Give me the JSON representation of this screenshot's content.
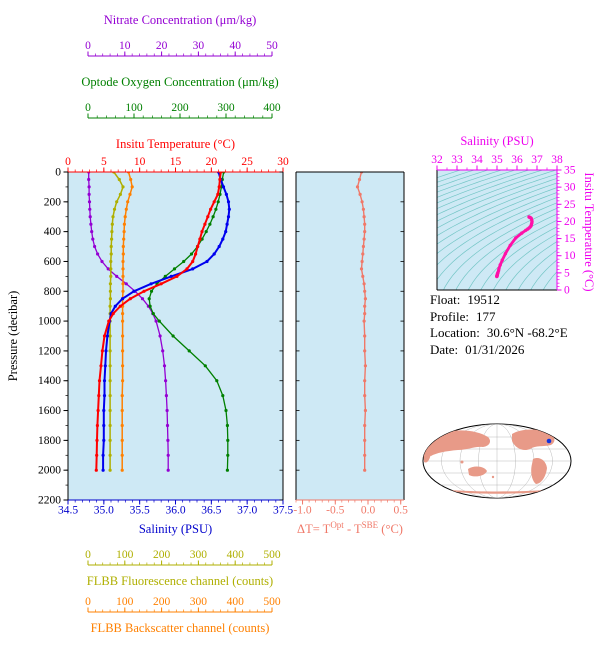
{
  "float_info": {
    "float_label": "Float:",
    "float_value": "19512",
    "profile_label": "Profile:",
    "profile_value": "177",
    "location_label": "Location:",
    "location_value": "30.6°N -68.2°E",
    "date_label": "Date:",
    "date_value": "01/31/2026"
  },
  "map": {
    "marker_color": "#1133DD",
    "land_color": "#E89A88"
  },
  "axes": {
    "nitrate": {
      "title": "Nitrate Concentration (μm/kg)",
      "color": "#9400D3",
      "min": 0,
      "max": 50,
      "ticks": [
        0,
        10,
        20,
        30,
        40,
        50
      ],
      "tick_labels": [
        "0",
        "10",
        "20",
        "30",
        "40",
        "50"
      ]
    },
    "oxygen": {
      "title": "Optode Oxygen Concentration (μm/kg)",
      "color": "#008000",
      "min": 0,
      "max": 400,
      "ticks": [
        0,
        100,
        200,
        300,
        400
      ],
      "tick_labels": [
        "0",
        "100",
        "200",
        "300",
        "400"
      ]
    },
    "temperature": {
      "title": "Insitu Temperature (°C)",
      "color": "#FF0000",
      "min": 0,
      "max": 30,
      "ticks": [
        0,
        5,
        10,
        15,
        20,
        25,
        30
      ],
      "tick_labels": [
        "0",
        "5",
        "10",
        "15",
        "20",
        "25",
        "30"
      ]
    },
    "pressure": {
      "title": "Pressure (decibar)",
      "color": "#000000",
      "min": 0,
      "max": 2200,
      "ticks": [
        0,
        200,
        400,
        600,
        800,
        1000,
        1200,
        1400,
        1600,
        1800,
        2000,
        2200
      ],
      "tick_labels": [
        "0",
        "200",
        "400",
        "600",
        "800",
        "1000",
        "1200",
        "1400",
        "1600",
        "1800",
        "2000",
        "2200"
      ]
    },
    "salinity": {
      "title": "Salinity (PSU)",
      "color": "#0000CC",
      "min": 34.5,
      "max": 37.5,
      "ticks": [
        34.5,
        35.0,
        35.5,
        36.0,
        36.5,
        37.0,
        37.5
      ],
      "tick_labels": [
        "34.5",
        "35.0",
        "35.5",
        "36.0",
        "36.5",
        "37.0",
        "37.5"
      ]
    },
    "fluorescence": {
      "title": "FLBB Fluorescence channel (counts)",
      "color": "#AFAF00",
      "min": 0,
      "max": 500,
      "ticks": [
        0,
        100,
        200,
        300,
        400,
        500
      ],
      "tick_labels": [
        "0",
        "100",
        "200",
        "300",
        "400",
        "500"
      ]
    },
    "backscatter": {
      "title": "FLBB Backscatter channel (counts)",
      "color": "#FF8000",
      "min": 0,
      "max": 500,
      "ticks": [
        0,
        100,
        200,
        300,
        400,
        500
      ],
      "tick_labels": [
        "0",
        "100",
        "200",
        "300",
        "400",
        "500"
      ]
    },
    "delta_t": {
      "title_parts": {
        "t1": "ΔT= T",
        "sup1": "Opt",
        "t2": " - T",
        "sup2": "SBE",
        "t3": " (°C)"
      },
      "color": "#F07868",
      "min": -1.0,
      "max": 0.5,
      "ticks": [
        -1.0,
        -0.5,
        0.0,
        0.5
      ],
      "tick_labels": [
        "-1.0",
        "-0.5",
        "0.0",
        "0.5"
      ]
    },
    "ts_salinity": {
      "title": "Salinity (PSU)",
      "color": "#EE00EE",
      "min": 32,
      "max": 38,
      "ticks": [
        32,
        33,
        34,
        35,
        36,
        37,
        38
      ],
      "tick_labels": [
        "32",
        "33",
        "34",
        "35",
        "36",
        "37",
        "38"
      ]
    },
    "ts_temperature": {
      "title": "Insitu Temperature (°C)",
      "color": "#EE00EE",
      "min": 0,
      "max": 35,
      "ticks": [
        0,
        5,
        10,
        15,
        20,
        25,
        30,
        35
      ],
      "tick_labels": [
        "0",
        "5",
        "10",
        "15",
        "20",
        "25",
        "30",
        "35"
      ]
    }
  },
  "chart_data": {
    "type": "line",
    "description": "Argo float vertical profiles vs pressure, optode-minus-SBE temperature difference profile, and T-S diagram with isopycnals",
    "pressure_db": [
      0,
      50,
      100,
      150,
      200,
      250,
      300,
      350,
      400,
      450,
      500,
      550,
      600,
      650,
      700,
      750,
      800,
      850,
      900,
      950,
      1000,
      1100,
      1200,
      1300,
      1400,
      1500,
      1600,
      1700,
      1800,
      1900,
      2000
    ],
    "series": [
      {
        "name": "nitrate",
        "label": "Nitrate Concentration (μm/kg)",
        "axis": "nitrate",
        "color": "#9400D3",
        "values": [
          0.2,
          0.2,
          0.3,
          0.3,
          0.4,
          0.5,
          0.6,
          0.8,
          1.0,
          1.3,
          1.8,
          2.6,
          3.8,
          5.5,
          7.8,
          10.4,
          12.8,
          14.8,
          16.4,
          17.6,
          18.5,
          19.6,
          20.3,
          20.8,
          21.1,
          21.3,
          21.5,
          21.6,
          21.7,
          21.8,
          21.8
        ]
      },
      {
        "name": "fluorescence",
        "label": "FLBB Fluorescence channel (counts)",
        "axis": "fluorescence",
        "color": "#AFAF00",
        "width": 1.5,
        "values": [
          70,
          85,
          95,
          88,
          78,
          72,
          68,
          66,
          65,
          64,
          63,
          63,
          62,
          62,
          62,
          61,
          61,
          61,
          60,
          60,
          60,
          60,
          60,
          60,
          60,
          60,
          60,
          60,
          60,
          60,
          60
        ]
      },
      {
        "name": "backscatter",
        "label": "FLBB Backscatter channel (counts)",
        "axis": "backscatter",
        "color": "#FF8000",
        "width": 1.5,
        "values": [
          110,
          116,
          120,
          114,
          108,
          104,
          101,
          99,
          98,
          97,
          96,
          96,
          95,
          95,
          95,
          95,
          95,
          94,
          94,
          94,
          94,
          94,
          94,
          94,
          94,
          93,
          93,
          93,
          93,
          93,
          93
        ]
      },
      {
        "name": "oxygen",
        "label": "Optode Oxygen Concentration (μm/kg)",
        "axis": "oxygen",
        "color": "#008000",
        "values": [
          295,
          292,
          290,
          287,
          283,
          278,
          272,
          265,
          257,
          248,
          238,
          225,
          208,
          188,
          168,
          150,
          138,
          133,
          135,
          142,
          155,
          185,
          220,
          255,
          280,
          293,
          300,
          303,
          304,
          304,
          303
        ]
      },
      {
        "name": "salinity",
        "label": "Salinity (PSU)",
        "axis": "salinity",
        "color": "#0000EE",
        "width": 2,
        "values": [
          36.6,
          36.63,
          36.67,
          36.71,
          36.74,
          36.75,
          36.74,
          36.72,
          36.7,
          36.66,
          36.61,
          36.54,
          36.44,
          36.24,
          35.94,
          35.66,
          35.42,
          35.26,
          35.16,
          35.1,
          35.08,
          35.05,
          35.03,
          35.02,
          35.01,
          35.01,
          35.0,
          35.0,
          35.0,
          34.99,
          34.99
        ]
      },
      {
        "name": "temperature",
        "label": "Insitu Temperature (°C)",
        "axis": "temperature",
        "color": "#FF0000",
        "width": 2,
        "values": [
          21.3,
          21.2,
          21.1,
          20.9,
          20.4,
          19.9,
          19.5,
          19.1,
          18.7,
          18.4,
          18.1,
          17.8,
          17.4,
          16.6,
          15.2,
          13.0,
          10.6,
          8.7,
          7.3,
          6.3,
          5.7,
          5.1,
          4.8,
          4.6,
          4.4,
          4.3,
          4.2,
          4.1,
          4.05,
          4.0,
          3.95
        ]
      },
      {
        "name": "delta_t",
        "label": "ΔT = T(Opt) - T(SBE) (°C)",
        "axis": "delta",
        "color": "#F07868",
        "width": 1.4,
        "values": [
          -0.1,
          -0.13,
          -0.16,
          -0.12,
          -0.09,
          -0.07,
          -0.06,
          -0.05,
          -0.05,
          -0.06,
          -0.07,
          -0.08,
          -0.09,
          -0.1,
          -0.08,
          -0.06,
          -0.05,
          -0.04,
          -0.05,
          -0.05,
          -0.06,
          -0.05,
          -0.05,
          -0.04,
          -0.05,
          -0.05,
          -0.04,
          -0.05,
          -0.05,
          -0.05,
          -0.05
        ]
      }
    ],
    "ts_diagram": {
      "note": "curve is temperature vs salinity from the profile series above",
      "isopycnals_sigma_theta": [
        18.5,
        19,
        19.5,
        20,
        20.5,
        21,
        21.5,
        22,
        22.5,
        23,
        23.5,
        24,
        24.5,
        25,
        25.5,
        26,
        26.5,
        27,
        27.5,
        28,
        28.5,
        29,
        29.5,
        30
      ],
      "curve_color": "#FF10A8",
      "contour_color": "#74C6C6"
    },
    "plot_background": "#CEE9F5"
  }
}
